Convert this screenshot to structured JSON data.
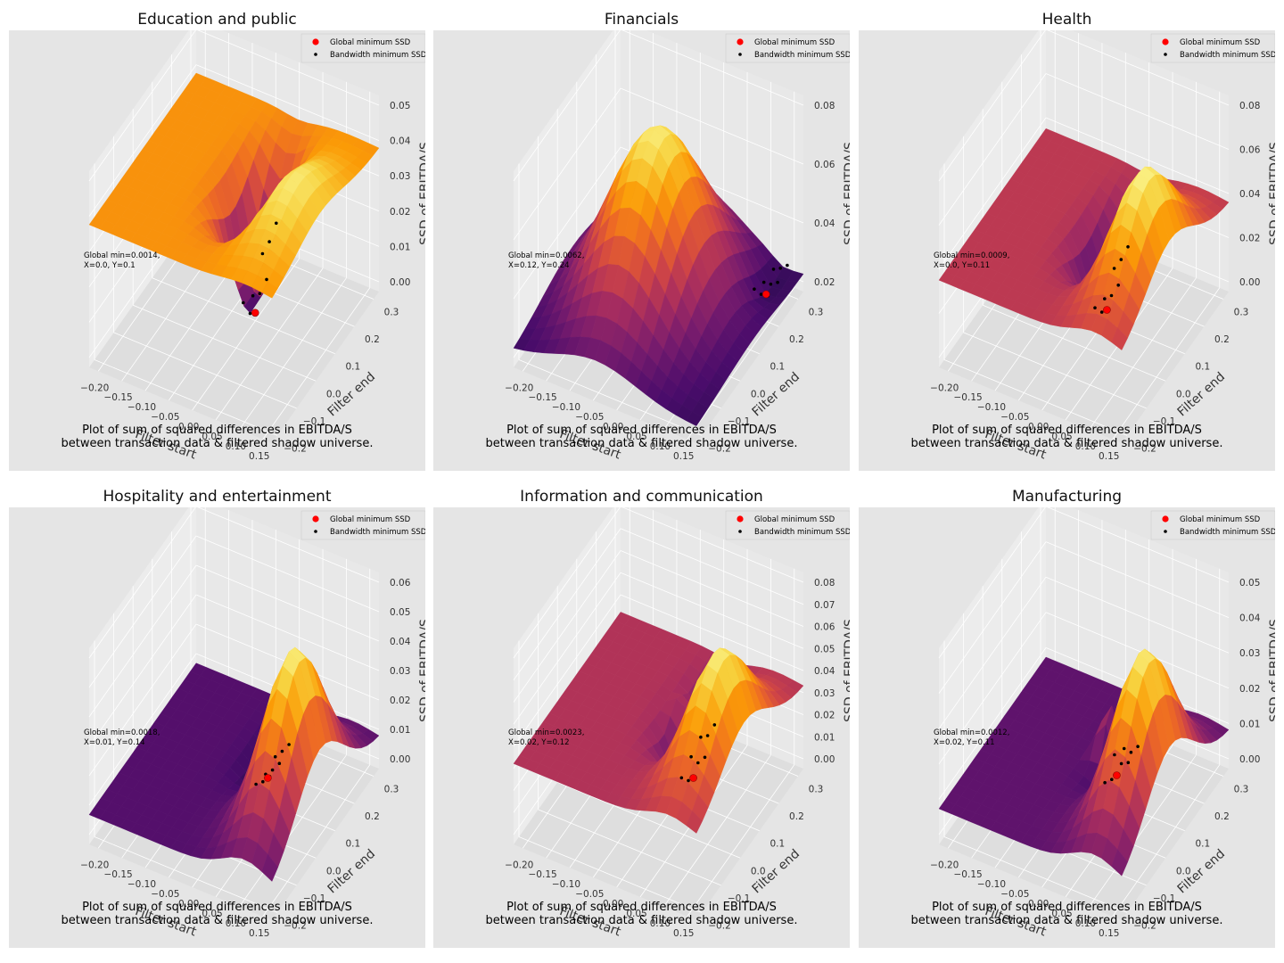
{
  "figure": {
    "caption_line1": "Plot of sum of squared differences in EBITDA/S",
    "caption_line2": "between transaction data & filtered shadow universe.",
    "legend_global": "Global minimum SSD",
    "legend_bandwidth": "Bandwidth minimum SSD",
    "xlabel": "Filter start",
    "ylabel": "Filter end",
    "zlabel": "SSD of EBITDA/S",
    "x_ticks": [
      "−0.20",
      "−0.15",
      "−0.10",
      "−0.05",
      "0.00",
      "0.05",
      "0.10",
      "0.15"
    ],
    "y_ticks": [
      "−0.2",
      "−0.1",
      "0.0",
      "0.1",
      "0.2",
      "0.3"
    ],
    "colors": {
      "panel_bg": "#e5e5e5",
      "grid": "#ffffff",
      "global_min": "#ff0000",
      "bandwidth_min": "#000000"
    }
  },
  "chart_data": [
    {
      "type": "surface3d",
      "title": "Education and public",
      "annotation_line1": "Global min=0.0014,",
      "annotation_line2": "X=0.0, Y=0.1",
      "z_ticks": [
        "0.00",
        "0.01",
        "0.02",
        "0.03",
        "0.04",
        "0.05"
      ],
      "zlim": [
        0,
        0.055
      ],
      "global_min": {
        "x": 0.0,
        "y": 0.1,
        "ssd": 0.0014
      },
      "plateau": 0.04,
      "peak": 0.052,
      "palette": [
        "#1b0c41",
        "#4a0c6b",
        "#781c6d",
        "#a52c60",
        "#cf4446",
        "#ed6925",
        "#fb9b06",
        "#f7d13d",
        "#fcffa4"
      ]
    },
    {
      "type": "surface3d",
      "title": "Financials",
      "annotation_line1": "Global min=0.0062,",
      "annotation_line2": "X=0.12, Y=0.24",
      "z_ticks": [
        "0.02",
        "0.04",
        "0.06",
        "0.08"
      ],
      "zlim": [
        0.005,
        0.09
      ],
      "global_min": {
        "x": 0.12,
        "y": 0.24,
        "ssd": 0.0062
      },
      "plateau": 0.012,
      "peak": 0.086,
      "palette": [
        "#1b0c41",
        "#4a0c6b",
        "#781c6d",
        "#a52c60",
        "#cf4446",
        "#ed6925",
        "#fb9b06",
        "#f7d13d",
        "#fcffa4"
      ]
    },
    {
      "type": "surface3d",
      "title": "Health",
      "annotation_line1": "Global min=0.0009,",
      "annotation_line2": "X=0.0, Y=0.11",
      "z_ticks": [
        "0.00",
        "0.02",
        "0.04",
        "0.06",
        "0.08"
      ],
      "zlim": [
        0,
        0.09
      ],
      "global_min": {
        "x": 0.0,
        "y": 0.11,
        "ssd": 0.0009
      },
      "plateau": 0.04,
      "peak": 0.088,
      "palette": [
        "#1b0c41",
        "#4a0c6b",
        "#781c6d",
        "#a52c60",
        "#cf4446",
        "#ed6925",
        "#fb9b06",
        "#f7d13d",
        "#fcffa4"
      ]
    },
    {
      "type": "surface3d",
      "title": "Hospitality and entertainment",
      "annotation_line1": "Global min=0.0018,",
      "annotation_line2": "X=0.01, Y=0.14",
      "z_ticks": [
        "0.00",
        "0.01",
        "0.02",
        "0.03",
        "0.04",
        "0.05",
        "0.06"
      ],
      "zlim": [
        0,
        0.066
      ],
      "global_min": {
        "x": 0.01,
        "y": 0.14,
        "ssd": 0.0018
      },
      "plateau": 0.01,
      "peak": 0.064,
      "palette": [
        "#1b0c41",
        "#4a0c6b",
        "#781c6d",
        "#a52c60",
        "#cf4446",
        "#ed6925",
        "#fb9b06",
        "#f7d13d",
        "#fcffa4"
      ]
    },
    {
      "type": "surface3d",
      "title": "Information and communication",
      "annotation_line1": "Global min=0.0023,",
      "annotation_line2": "X=0.02, Y=0.12",
      "z_ticks": [
        "0.00",
        "0.01",
        "0.02",
        "0.03",
        "0.04",
        "0.05",
        "0.06",
        "0.07",
        "0.08"
      ],
      "zlim": [
        0,
        0.085
      ],
      "global_min": {
        "x": 0.02,
        "y": 0.12,
        "ssd": 0.0023
      },
      "plateau": 0.035,
      "peak": 0.082,
      "palette": [
        "#1b0c41",
        "#4a0c6b",
        "#781c6d",
        "#a52c60",
        "#cf4446",
        "#ed6925",
        "#fb9b06",
        "#f7d13d",
        "#fcffa4"
      ]
    },
    {
      "type": "surface3d",
      "title": "Manufacturing",
      "annotation_line1": "Global min=0.0012,",
      "annotation_line2": "X=0.02, Y=0.11",
      "z_ticks": [
        "0.00",
        "0.01",
        "0.02",
        "0.03",
        "0.04",
        "0.05"
      ],
      "zlim": [
        0,
        0.055
      ],
      "global_min": {
        "x": 0.02,
        "y": 0.11,
        "ssd": 0.0012
      },
      "plateau": 0.01,
      "peak": 0.053,
      "palette": [
        "#1b0c41",
        "#4a0c6b",
        "#781c6d",
        "#a52c60",
        "#cf4446",
        "#ed6925",
        "#fb9b06",
        "#f7d13d",
        "#fcffa4"
      ]
    }
  ]
}
